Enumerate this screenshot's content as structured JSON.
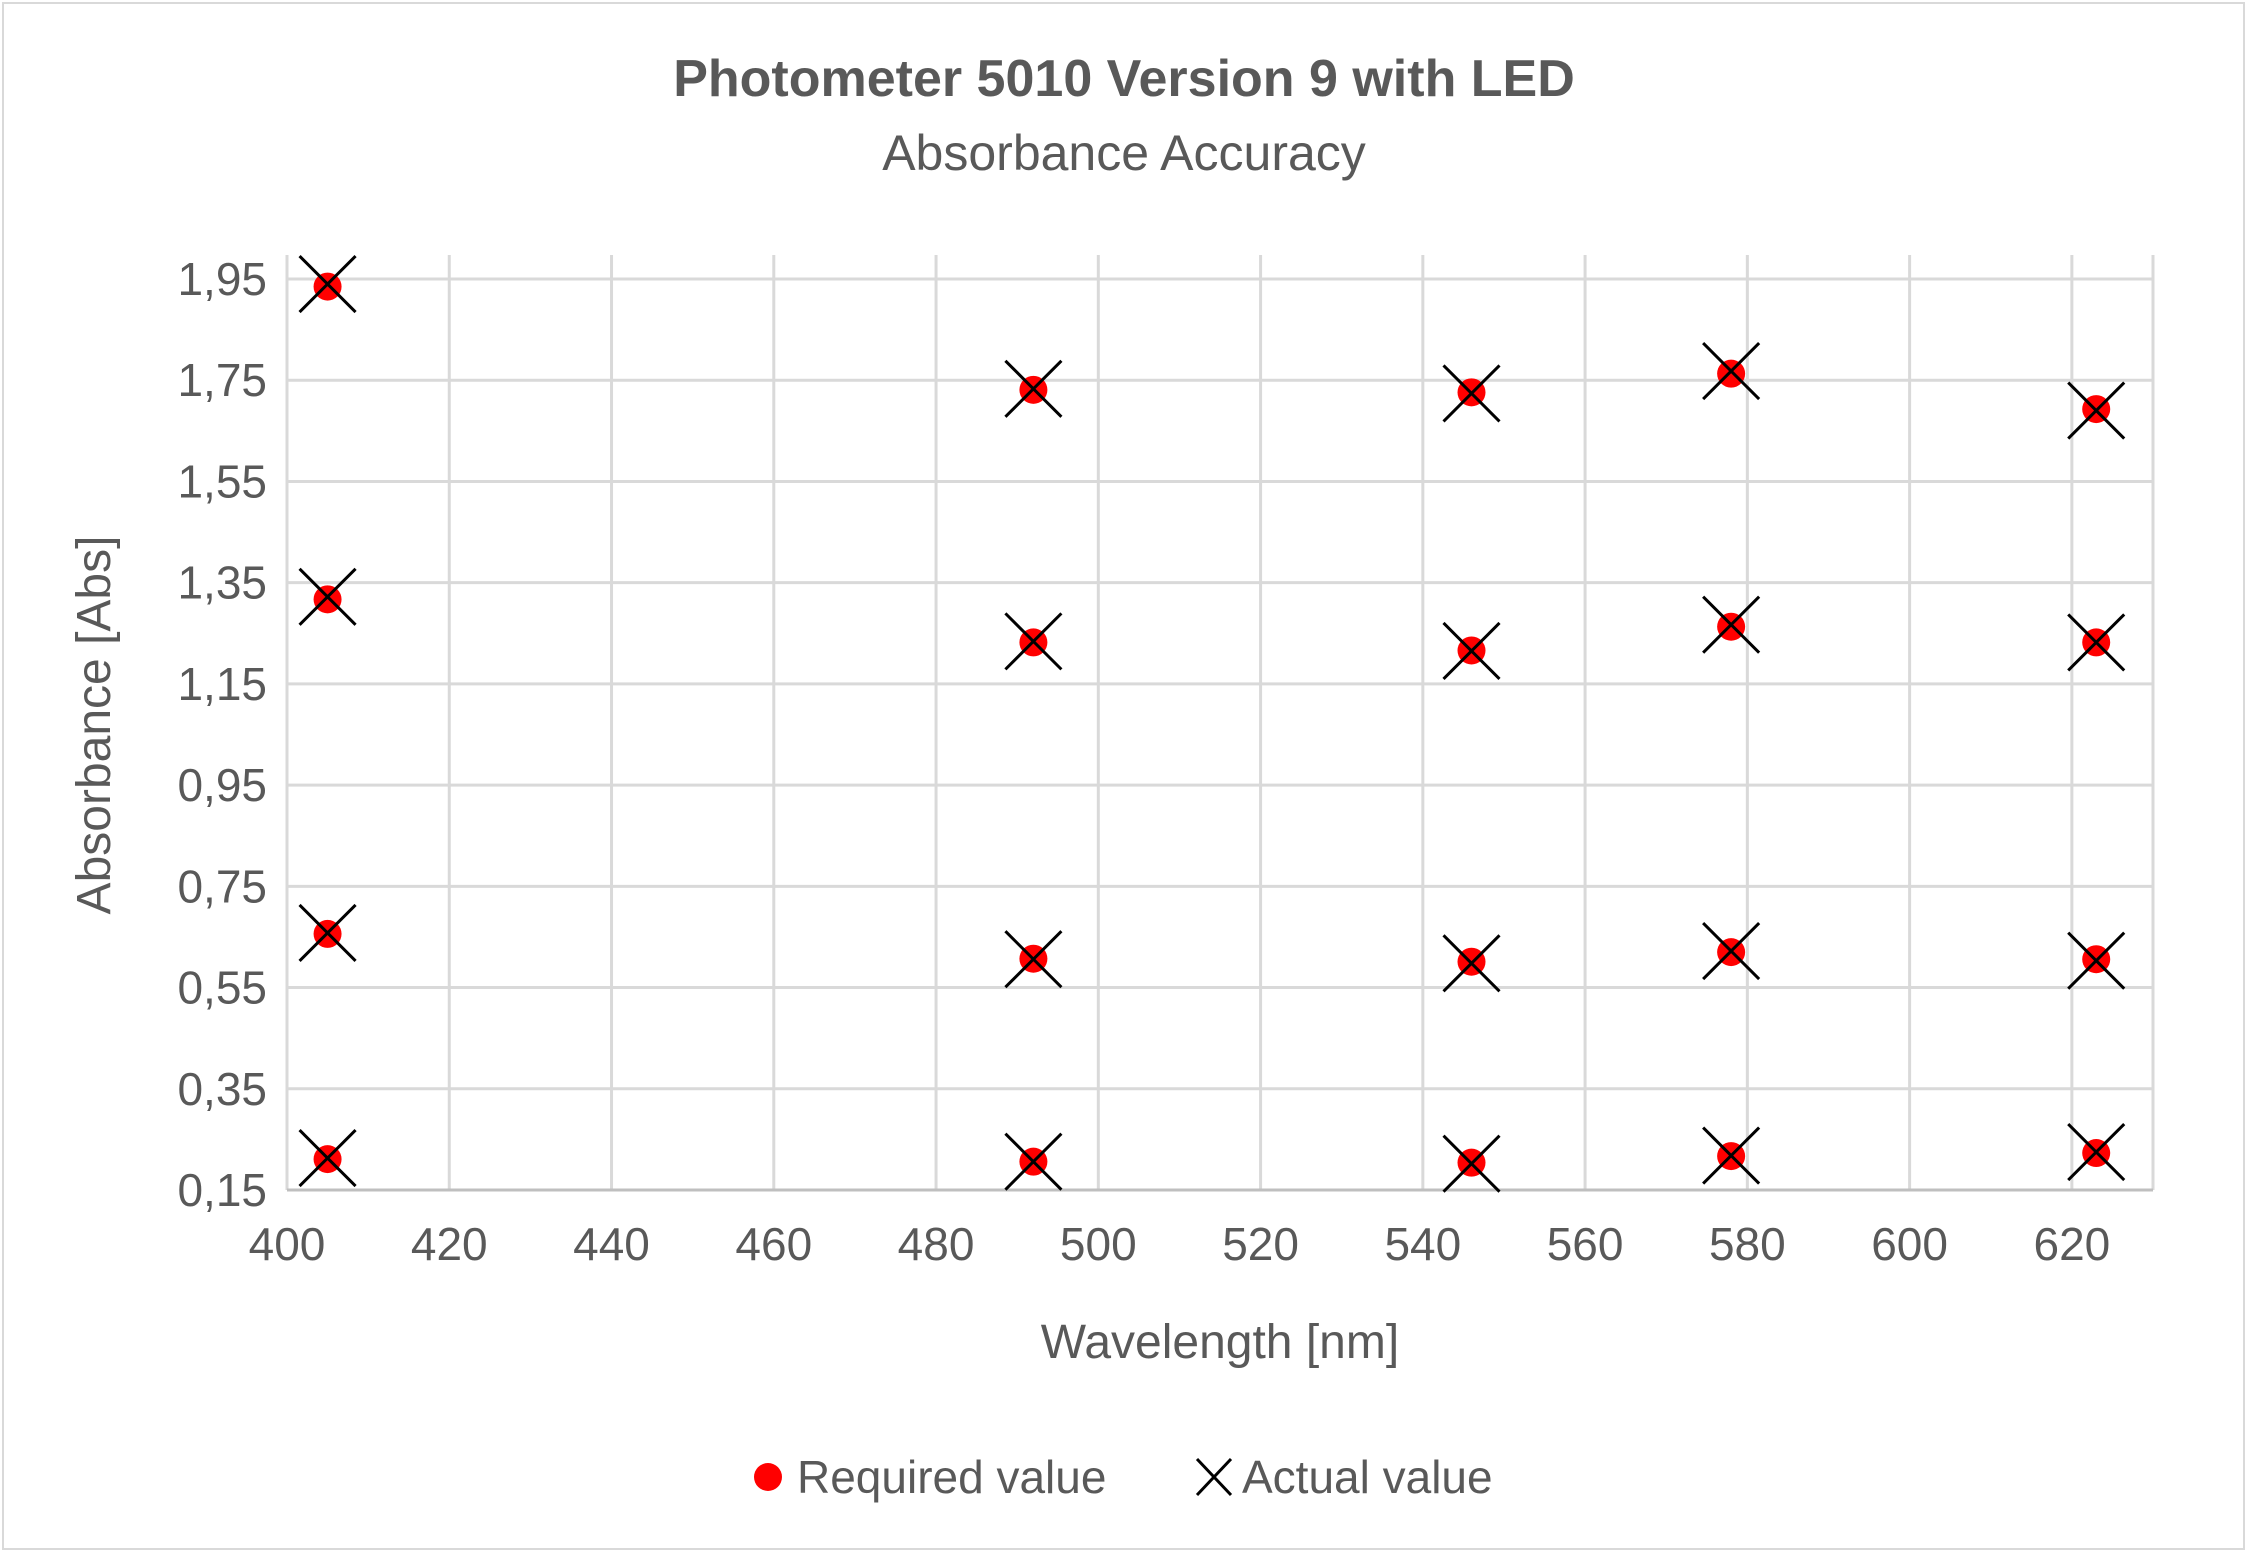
{
  "chart_data": {
    "type": "scatter",
    "title": "Photometer 5010 Version 9 with LED",
    "subtitle": "Absorbance Accuracy",
    "xlabel": "Wavelength [nm]",
    "ylabel": "Absorbance [Abs]",
    "xlim": [
      400,
      630
    ],
    "ylim": [
      0.15,
      1.95
    ],
    "x_ticks": [
      "400",
      "420",
      "440",
      "460",
      "480",
      "500",
      "520",
      "540",
      "560",
      "580",
      "600",
      "620"
    ],
    "y_ticks": [
      "1,95",
      "1,75",
      "1,55",
      "1,35",
      "1,15",
      "0,95",
      "0,75",
      "0,55",
      "0,35",
      "0,15"
    ],
    "grid": true,
    "legend_position": "bottom",
    "series": [
      {
        "name": "Required value",
        "marker": "circle",
        "color": "#ff0000",
        "points": [
          {
            "x": 405,
            "y": 1.935
          },
          {
            "x": 405,
            "y": 1.317
          },
          {
            "x": 405,
            "y": 0.656
          },
          {
            "x": 405,
            "y": 0.211
          },
          {
            "x": 492,
            "y": 1.731
          },
          {
            "x": 492,
            "y": 1.232
          },
          {
            "x": 492,
            "y": 0.607
          },
          {
            "x": 492,
            "y": 0.206
          },
          {
            "x": 546,
            "y": 1.726
          },
          {
            "x": 546,
            "y": 1.216
          },
          {
            "x": 546,
            "y": 0.601
          },
          {
            "x": 546,
            "y": 0.204
          },
          {
            "x": 578,
            "y": 1.763
          },
          {
            "x": 578,
            "y": 1.263
          },
          {
            "x": 578,
            "y": 0.62
          },
          {
            "x": 578,
            "y": 0.217
          },
          {
            "x": 623,
            "y": 1.693
          },
          {
            "x": 623,
            "y": 1.232
          },
          {
            "x": 623,
            "y": 0.606
          },
          {
            "x": 623,
            "y": 0.223
          }
        ]
      },
      {
        "name": "Actual value",
        "marker": "x",
        "color": "#000000",
        "points": [
          {
            "x": 405,
            "y": 1.94
          },
          {
            "x": 405,
            "y": 1.322
          },
          {
            "x": 405,
            "y": 0.658
          },
          {
            "x": 405,
            "y": 0.213
          },
          {
            "x": 492,
            "y": 1.733
          },
          {
            "x": 492,
            "y": 1.234
          },
          {
            "x": 492,
            "y": 0.606
          },
          {
            "x": 492,
            "y": 0.206
          },
          {
            "x": 546,
            "y": 1.724
          },
          {
            "x": 546,
            "y": 1.215
          },
          {
            "x": 546,
            "y": 0.598
          },
          {
            "x": 546,
            "y": 0.202
          },
          {
            "x": 578,
            "y": 1.768
          },
          {
            "x": 578,
            "y": 1.267
          },
          {
            "x": 578,
            "y": 0.622
          },
          {
            "x": 578,
            "y": 0.218
          },
          {
            "x": 623,
            "y": 1.69
          },
          {
            "x": 623,
            "y": 1.232
          },
          {
            "x": 623,
            "y": 0.603
          },
          {
            "x": 623,
            "y": 0.225
          }
        ]
      }
    ]
  }
}
